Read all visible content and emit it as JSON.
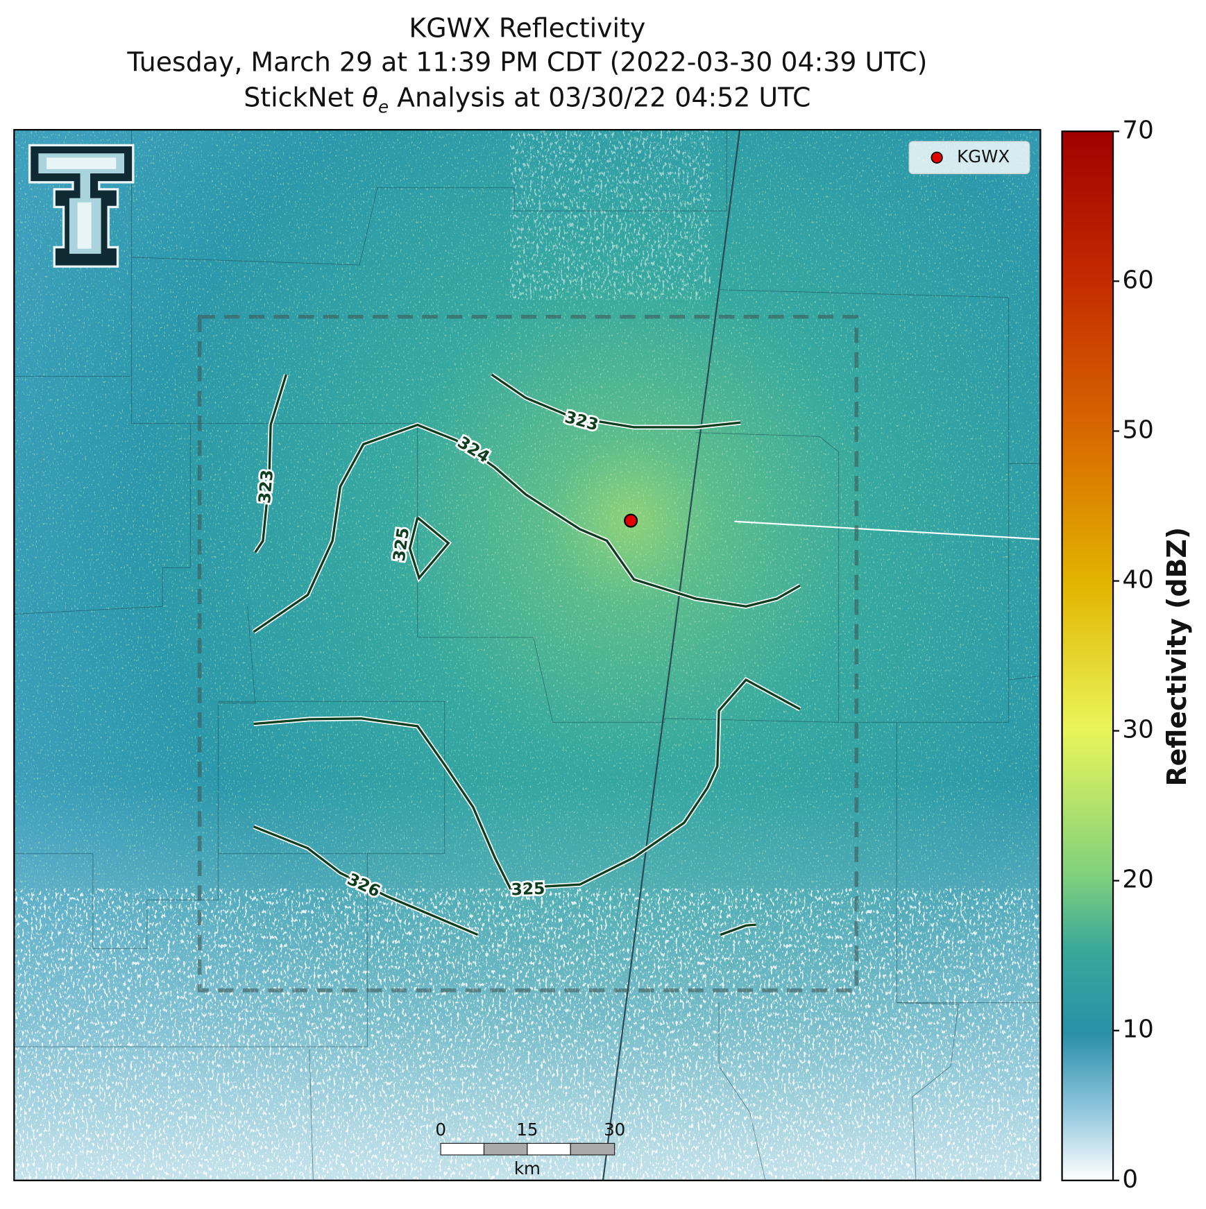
{
  "title": {
    "line1": "KGWX Reflectivity",
    "line2": "Tuesday, March 29 at 11:39 PM CDT (2022-03-30 04:39 UTC)",
    "line3": {
      "prefix": "StickNet ",
      "symbol": "θ",
      "subscript": "e",
      "suffix": " Analysis at 03/30/22 04:52 UTC"
    }
  },
  "legend": {
    "label": "KGWX"
  },
  "contours": {
    "labels": [
      "323",
      "323",
      "324",
      "325",
      "325",
      "326"
    ]
  },
  "scale_bar": {
    "ticks": [
      "0",
      "15",
      "30"
    ],
    "unit": "km"
  },
  "colorbar": {
    "label": "Reflectivity (dBZ)",
    "lim": [
      0,
      70
    ],
    "ticks": [
      0,
      10,
      20,
      30,
      40,
      50,
      60,
      70
    ]
  }
}
